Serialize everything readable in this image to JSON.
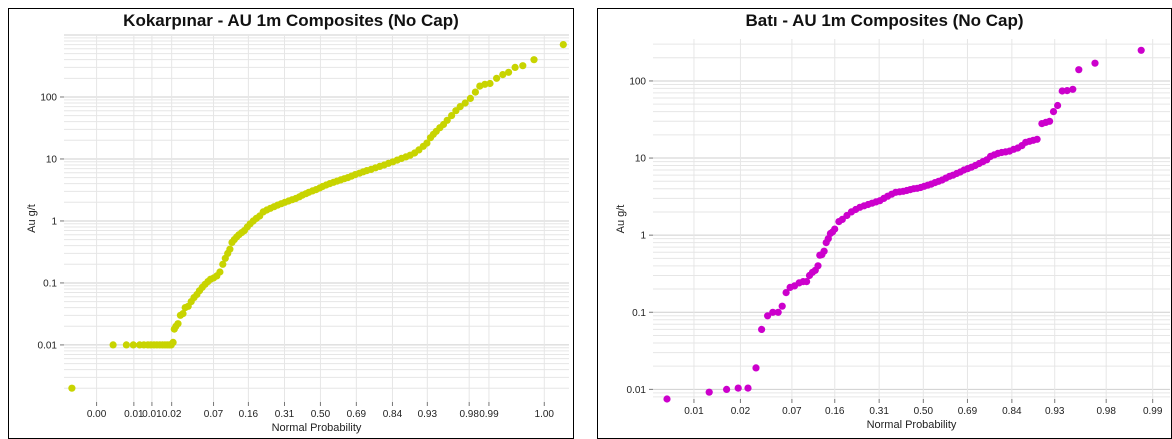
{
  "chart_data": [
    {
      "type": "scatter",
      "title": "Kokarpınar - AU 1m Composites (No Cap)",
      "xlabel": "Normal Probability",
      "ylabel": "Au g/t",
      "color": "#c8d400",
      "y_scale": "log",
      "x_scale": "normal-probability",
      "xticks": [
        {
          "p": 0.001,
          "label": "0.00"
        },
        {
          "p": 0.005,
          "label": "0.01"
        },
        {
          "p": 0.01,
          "label": "0.01"
        },
        {
          "p": 0.02,
          "label": "0.02"
        },
        {
          "p": 0.07,
          "label": "0.07"
        },
        {
          "p": 0.16,
          "label": "0.16"
        },
        {
          "p": 0.31,
          "label": "0.31"
        },
        {
          "p": 0.5,
          "label": "0.50"
        },
        {
          "p": 0.69,
          "label": "0.69"
        },
        {
          "p": 0.84,
          "label": "0.84"
        },
        {
          "p": 0.93,
          "label": "0.93"
        },
        {
          "p": 0.98,
          "label": "0.98"
        },
        {
          "p": 0.99,
          "label": "0.99"
        },
        {
          "p": 0.999,
          "label": "1.00"
        }
      ],
      "yticks": [
        {
          "v": 0.01,
          "label": "0.01"
        },
        {
          "v": 0.1,
          "label": "0.1"
        },
        {
          "v": 1,
          "label": "1"
        },
        {
          "v": 10,
          "label": "10"
        },
        {
          "v": 100,
          "label": "100"
        }
      ],
      "ylim": [
        0.0012,
        1000
      ],
      "points": [
        [
          0.0003,
          0.002
        ],
        [
          0.0021,
          0.01
        ],
        [
          0.0037,
          0.01
        ],
        [
          0.0049,
          0.01
        ],
        [
          0.0063,
          0.01
        ],
        [
          0.0074,
          0.01
        ],
        [
          0.0086,
          0.01
        ],
        [
          0.0096,
          0.01
        ],
        [
          0.0108,
          0.01
        ],
        [
          0.012,
          0.01
        ],
        [
          0.0133,
          0.01
        ],
        [
          0.0146,
          0.01
        ],
        [
          0.0159,
          0.01
        ],
        [
          0.0172,
          0.01
        ],
        [
          0.0185,
          0.01
        ],
        [
          0.0197,
          0.01
        ],
        [
          0.021,
          0.011
        ],
        [
          0.0218,
          0.018
        ],
        [
          0.023,
          0.02
        ],
        [
          0.0246,
          0.022
        ],
        [
          0.0266,
          0.03
        ],
        [
          0.0289,
          0.032
        ],
        [
          0.031,
          0.04
        ],
        [
          0.034,
          0.042
        ],
        [
          0.0372,
          0.05
        ],
        [
          0.0405,
          0.058
        ],
        [
          0.044,
          0.065
        ],
        [
          0.0475,
          0.075
        ],
        [
          0.0515,
          0.085
        ],
        [
          0.0557,
          0.095
        ],
        [
          0.0601,
          0.105
        ],
        [
          0.0647,
          0.115
        ],
        [
          0.0701,
          0.12
        ],
        [
          0.0762,
          0.13
        ],
        [
          0.0826,
          0.15
        ],
        [
          0.0888,
          0.2
        ],
        [
          0.0945,
          0.25
        ],
        [
          0.1003,
          0.3
        ],
        [
          0.1056,
          0.35
        ],
        [
          0.1112,
          0.45
        ],
        [
          0.1172,
          0.5
        ],
        [
          0.1236,
          0.55
        ],
        [
          0.1306,
          0.6
        ],
        [
          0.1384,
          0.65
        ],
        [
          0.147,
          0.7
        ],
        [
          0.1562,
          0.8
        ],
        [
          0.1661,
          0.9
        ],
        [
          0.1767,
          1.0
        ],
        [
          0.1879,
          1.1
        ],
        [
          0.2008,
          1.2
        ],
        [
          0.2146,
          1.4
        ],
        [
          0.2297,
          1.5
        ],
        [
          0.2451,
          1.6
        ],
        [
          0.2611,
          1.7
        ],
        [
          0.2776,
          1.8
        ],
        [
          0.2946,
          1.9
        ],
        [
          0.3121,
          2.0
        ],
        [
          0.33,
          2.1
        ],
        [
          0.3483,
          2.2
        ],
        [
          0.3669,
          2.3
        ],
        [
          0.3859,
          2.45
        ],
        [
          0.4013,
          2.6
        ],
        [
          0.4207,
          2.75
        ],
        [
          0.4364,
          2.9
        ],
        [
          0.4562,
          3.05
        ],
        [
          0.4761,
          3.2
        ],
        [
          0.496,
          3.4
        ],
        [
          0.512,
          3.6
        ],
        [
          0.5319,
          3.8
        ],
        [
          0.5517,
          4.0
        ],
        [
          0.5714,
          4.2
        ],
        [
          0.591,
          4.4
        ],
        [
          0.6103,
          4.6
        ],
        [
          0.6293,
          4.8
        ],
        [
          0.648,
          5.0
        ],
        [
          0.6664,
          5.3
        ],
        [
          0.6844,
          5.6
        ],
        [
          0.7054,
          5.9
        ],
        [
          0.7224,
          6.2
        ],
        [
          0.7389,
          6.5
        ],
        [
          0.758,
          6.8
        ],
        [
          0.7764,
          7.2
        ],
        [
          0.7939,
          7.6
        ],
        [
          0.8106,
          8.0
        ],
        [
          0.8264,
          8.5
        ],
        [
          0.8413,
          9.0
        ],
        [
          0.8554,
          9.6
        ],
        [
          0.8686,
          10.2
        ],
        [
          0.881,
          10.8
        ],
        [
          0.8925,
          11.5
        ],
        [
          0.9032,
          12.5
        ],
        [
          0.9131,
          14
        ],
        [
          0.9222,
          16
        ],
        [
          0.9292,
          18
        ],
        [
          0.9357,
          22
        ],
        [
          0.9406,
          25
        ],
        [
          0.9452,
          28
        ],
        [
          0.9505,
          32
        ],
        [
          0.9554,
          36
        ],
        [
          0.96,
          42
        ],
        [
          0.9649,
          50
        ],
        [
          0.9693,
          60
        ],
        [
          0.9732,
          70
        ],
        [
          0.9772,
          80
        ],
        [
          0.9808,
          95
        ],
        [
          0.9838,
          120
        ],
        [
          0.9861,
          150
        ],
        [
          0.9884,
          160
        ],
        [
          0.9904,
          165
        ],
        [
          0.9925,
          200
        ],
        [
          0.9941,
          230
        ],
        [
          0.9953,
          250
        ],
        [
          0.9964,
          300
        ],
        [
          0.9974,
          320
        ],
        [
          0.9984,
          400
        ],
        [
          0.9996,
          700
        ]
      ]
    },
    {
      "type": "scatter",
      "title": "Batı - AU 1m Composites (No Cap)",
      "xlabel": "Normal Probability",
      "ylabel": "Au g/t",
      "color": "#cc00cc",
      "y_scale": "log",
      "x_scale": "normal-probability",
      "xticks": [
        {
          "p": 0.005,
          "label": "0.01"
        },
        {
          "p": 0.02,
          "label": "0.02"
        },
        {
          "p": 0.07,
          "label": "0.07"
        },
        {
          "p": 0.16,
          "label": "0.16"
        },
        {
          "p": 0.31,
          "label": "0.31"
        },
        {
          "p": 0.5,
          "label": "0.50"
        },
        {
          "p": 0.69,
          "label": "0.69"
        },
        {
          "p": 0.84,
          "label": "0.84"
        },
        {
          "p": 0.93,
          "label": "0.93"
        },
        {
          "p": 0.98,
          "label": "0.98"
        },
        {
          "p": 0.995,
          "label": "0.99"
        }
      ],
      "yticks": [
        {
          "v": 0.01,
          "label": "0.01"
        },
        {
          "v": 0.1,
          "label": "0.1"
        },
        {
          "v": 1,
          "label": "1"
        },
        {
          "v": 10,
          "label": "10"
        },
        {
          "v": 100,
          "label": "100"
        }
      ],
      "ylim": [
        0.0075,
        350
      ],
      "points": [
        [
          0.002,
          0.0075
        ],
        [
          0.0081,
          0.0092
        ],
        [
          0.0136,
          0.01
        ],
        [
          0.0188,
          0.0104
        ],
        [
          0.0245,
          0.0104
        ],
        [
          0.0301,
          0.019
        ],
        [
          0.0347,
          0.06
        ],
        [
          0.0402,
          0.09
        ],
        [
          0.0455,
          0.1
        ],
        [
          0.0516,
          0.1
        ],
        [
          0.0565,
          0.12
        ],
        [
          0.0616,
          0.18
        ],
        [
          0.0673,
          0.21
        ],
        [
          0.074,
          0.22
        ],
        [
          0.0815,
          0.24
        ],
        [
          0.0886,
          0.25
        ],
        [
          0.0949,
          0.25
        ],
        [
          0.1006,
          0.3
        ],
        [
          0.1066,
          0.33
        ],
        [
          0.1126,
          0.35
        ],
        [
          0.1184,
          0.4
        ],
        [
          0.1225,
          0.55
        ],
        [
          0.1274,
          0.56
        ],
        [
          0.1325,
          0.62
        ],
        [
          0.1376,
          0.8
        ],
        [
          0.1429,
          0.9
        ],
        [
          0.1484,
          1.05
        ],
        [
          0.154,
          1.1
        ],
        [
          0.1598,
          1.2
        ],
        [
          0.1715,
          1.5
        ],
        [
          0.1816,
          1.6
        ],
        [
          0.1954,
          1.8
        ],
        [
          0.2095,
          2.0
        ],
        [
          0.2238,
          2.15
        ],
        [
          0.2383,
          2.3
        ],
        [
          0.2529,
          2.4
        ],
        [
          0.2677,
          2.5
        ],
        [
          0.2826,
          2.6
        ],
        [
          0.2976,
          2.7
        ],
        [
          0.3129,
          2.8
        ],
        [
          0.3285,
          3.0
        ],
        [
          0.3446,
          3.2
        ],
        [
          0.3613,
          3.4
        ],
        [
          0.3783,
          3.6
        ],
        [
          0.3949,
          3.65
        ],
        [
          0.4107,
          3.7
        ],
        [
          0.4263,
          3.8
        ],
        [
          0.4418,
          3.9
        ],
        [
          0.4573,
          4.0
        ],
        [
          0.4728,
          4.05
        ],
        [
          0.4884,
          4.15
        ],
        [
          0.504,
          4.3
        ],
        [
          0.5199,
          4.45
        ],
        [
          0.5359,
          4.6
        ],
        [
          0.552,
          4.8
        ],
        [
          0.5682,
          5.0
        ],
        [
          0.5842,
          5.2
        ],
        [
          0.6,
          5.5
        ],
        [
          0.6155,
          5.8
        ],
        [
          0.6306,
          6.0
        ],
        [
          0.6461,
          6.3
        ],
        [
          0.6612,
          6.6
        ],
        [
          0.6762,
          7.0
        ],
        [
          0.6912,
          7.3
        ],
        [
          0.7059,
          7.6
        ],
        [
          0.7204,
          8.0
        ],
        [
          0.7347,
          8.5
        ],
        [
          0.7485,
          9.0
        ],
        [
          0.762,
          9.5
        ],
        [
          0.7748,
          10.5
        ],
        [
          0.7871,
          11
        ],
        [
          0.799,
          11.5
        ],
        [
          0.8107,
          11.8
        ],
        [
          0.8224,
          12
        ],
        [
          0.8337,
          12.3
        ],
        [
          0.8449,
          13
        ],
        [
          0.8556,
          13.5
        ],
        [
          0.8659,
          14.5
        ],
        [
          0.875,
          16
        ],
        [
          0.8834,
          16.5
        ],
        [
          0.8915,
          17
        ],
        [
          0.8993,
          17.5
        ],
        [
          0.9085,
          28
        ],
        [
          0.9155,
          29
        ],
        [
          0.9219,
          30
        ],
        [
          0.9281,
          40
        ],
        [
          0.9343,
          48
        ],
        [
          0.9406,
          74
        ],
        [
          0.9468,
          75
        ],
        [
          0.9534,
          78
        ],
        [
          0.9596,
          140
        ],
        [
          0.9731,
          170
        ],
        [
          0.9928,
          250
        ]
      ]
    }
  ]
}
